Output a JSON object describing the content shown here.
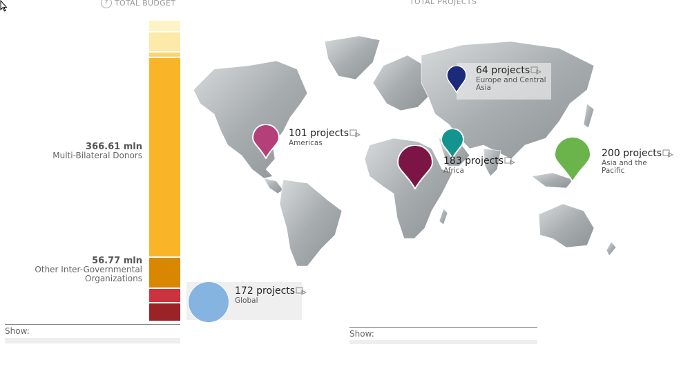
{
  "headers": {
    "budget": "TOTAL BUDGET",
    "projects": "TOTAL PROJECTS"
  },
  "budget_bar": {
    "segments": [
      {
        "color": "#fdf3c4"
      },
      {
        "color": "#fde9a8"
      },
      {
        "color": "#fbd56a"
      },
      {
        "color": "#f9b428",
        "label_value": "366.61 mln",
        "label_name": "Multi-Bilateral Donors"
      },
      {
        "color": "#d98700",
        "label_value": "56.77 mln",
        "label_name": "Other Inter-Governmental Organizations"
      },
      {
        "color": "#cc333f"
      },
      {
        "color": "#9b2226"
      }
    ],
    "labels": {
      "mbd_value": "366.61 mln",
      "mbd_name": "Multi-Bilateral Donors",
      "oigo_value": "56.77 mln",
      "oigo_name1": "Other Inter-Governmental",
      "oigo_name2": "Organizations"
    }
  },
  "show_label": "Show:",
  "regions": {
    "europe": {
      "count": "64 projects",
      "name1": "Europe and Central",
      "name2": "Asia",
      "color": "#1b2a7a"
    },
    "americas": {
      "count": "101 projects",
      "name": "Americas",
      "color": "#b43f79"
    },
    "arab": {
      "color": "#13948f"
    },
    "africa": {
      "count": "183 projects",
      "name": "Africa",
      "color": "#7b1545"
    },
    "asia": {
      "count": "200 projects",
      "name1": "Asia and the",
      "name2": "Pacific",
      "color": "#6bb44c"
    },
    "global": {
      "count": "172 projects",
      "name": "Global",
      "color": "#86b4e0"
    }
  }
}
